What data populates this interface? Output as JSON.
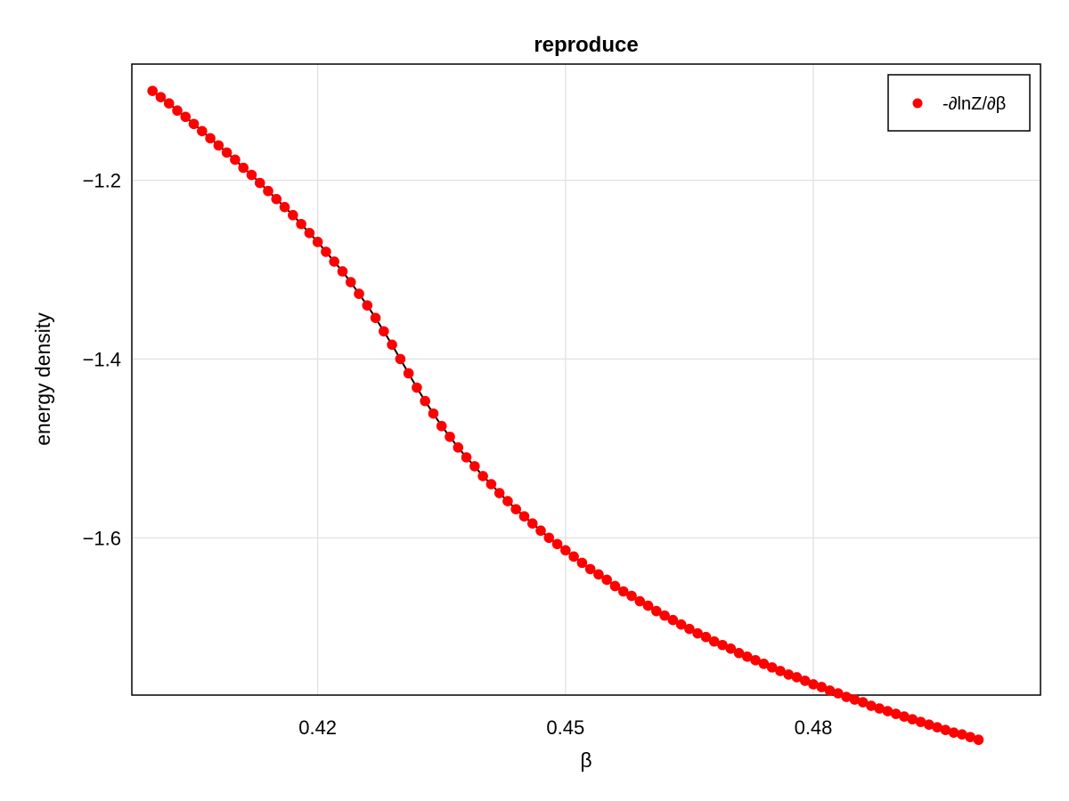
{
  "chart_data": {
    "type": "scatter",
    "title": "reproduce",
    "xlabel": "β",
    "ylabel": "energy density",
    "xlim": [
      0.3975,
      0.5075
    ],
    "ylim": [
      -1.776,
      -1.07
    ],
    "xticks": [
      0.42,
      0.45,
      0.48
    ],
    "xtick_labels": [
      "0.42",
      "0.45",
      "0.48"
    ],
    "yticks": [
      -1.2,
      -1.4,
      -1.6
    ],
    "ytick_labels": [
      "−1.2",
      "−1.4",
      "−1.6"
    ],
    "grid": true,
    "legend": {
      "position": "top-right",
      "entries": [
        "-∂lnZ/∂β"
      ]
    },
    "colors": {
      "points": "#ff0000",
      "line": "#000000",
      "grid": "#e0e0e0",
      "frame": "#000000"
    },
    "series": [
      {
        "name": "-∂lnZ/∂β",
        "style": "scatter+line",
        "x": [
          0.4,
          0.401,
          0.402,
          0.403,
          0.404,
          0.405,
          0.406,
          0.407,
          0.408,
          0.409,
          0.41,
          0.411,
          0.412,
          0.413,
          0.414,
          0.415,
          0.416,
          0.417,
          0.418,
          0.419,
          0.42,
          0.421,
          0.422,
          0.423,
          0.424,
          0.425,
          0.426,
          0.427,
          0.428,
          0.429,
          0.43,
          0.431,
          0.432,
          0.433,
          0.434,
          0.435,
          0.436,
          0.437,
          0.438,
          0.439,
          0.44,
          0.441,
          0.442,
          0.443,
          0.444,
          0.445,
          0.446,
          0.447,
          0.448,
          0.449,
          0.45,
          0.451,
          0.452,
          0.453,
          0.454,
          0.455,
          0.456,
          0.457,
          0.458,
          0.459,
          0.46,
          0.461,
          0.462,
          0.463,
          0.464,
          0.465,
          0.466,
          0.467,
          0.468,
          0.469,
          0.47,
          0.471,
          0.472,
          0.473,
          0.474,
          0.475,
          0.476,
          0.477,
          0.478,
          0.479,
          0.48,
          0.481,
          0.482,
          0.483,
          0.484,
          0.485,
          0.486,
          0.487,
          0.488,
          0.489,
          0.49,
          0.491,
          0.492,
          0.493,
          0.494,
          0.495,
          0.496,
          0.497,
          0.498,
          0.499,
          0.5
        ],
        "y": [
          -1.1,
          -1.107,
          -1.114,
          -1.122,
          -1.129,
          -1.137,
          -1.145,
          -1.153,
          -1.161,
          -1.169,
          -1.177,
          -1.186,
          -1.194,
          -1.203,
          -1.212,
          -1.221,
          -1.23,
          -1.239,
          -1.249,
          -1.259,
          -1.269,
          -1.28,
          -1.291,
          -1.302,
          -1.314,
          -1.327,
          -1.34,
          -1.354,
          -1.369,
          -1.384,
          -1.4,
          -1.416,
          -1.432,
          -1.447,
          -1.461,
          -1.475,
          -1.487,
          -1.499,
          -1.51,
          -1.52,
          -1.531,
          -1.54,
          -1.55,
          -1.559,
          -1.568,
          -1.576,
          -1.584,
          -1.592,
          -1.6,
          -1.607,
          -1.614,
          -1.621,
          -1.628,
          -1.635,
          -1.641,
          -1.647,
          -1.654,
          -1.66,
          -1.665,
          -1.671,
          -1.676,
          -1.682,
          -1.687,
          -1.692,
          -1.697,
          -1.702,
          -1.707,
          -1.711,
          -1.716,
          -1.72,
          -1.724,
          -1.729,
          -1.733,
          -1.737,
          -1.741,
          -1.745,
          -1.749,
          -1.753,
          -1.756,
          -1.76,
          -1.764,
          -1.767,
          -1.771,
          -1.774,
          -1.778,
          -1.781,
          -1.784,
          -1.788,
          -1.791,
          -1.794,
          -1.797,
          -1.8,
          -1.803,
          -1.806,
          -1.809,
          -1.812,
          -1.815,
          -1.818,
          -1.82,
          -1.823,
          -1.826
        ]
      }
    ]
  }
}
